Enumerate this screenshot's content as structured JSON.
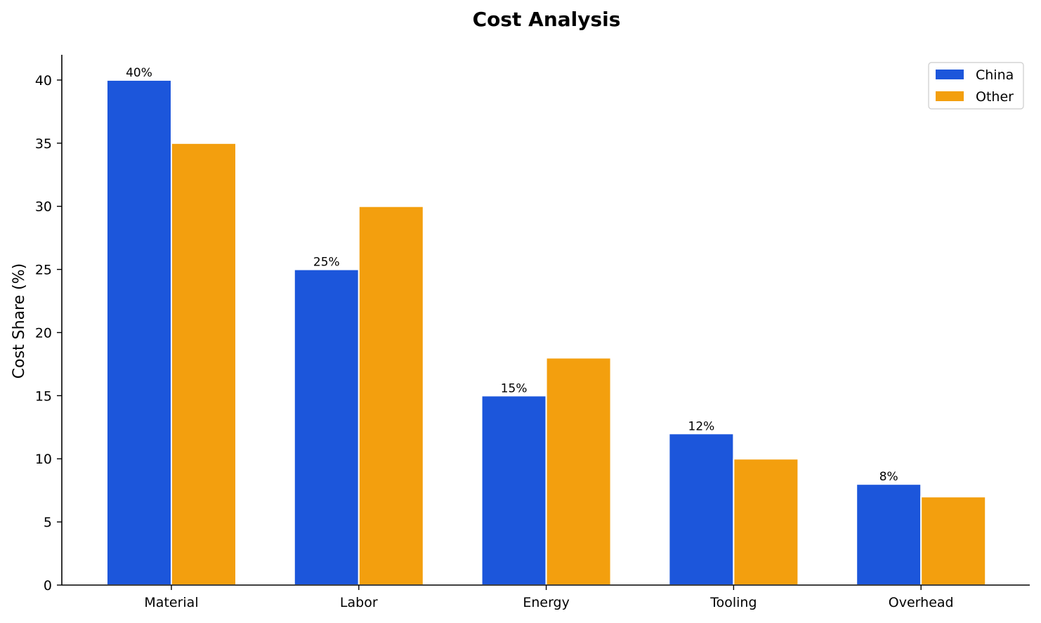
{
  "chart_data": {
    "type": "bar",
    "title": "Cost Analysis",
    "xlabel": "",
    "ylabel": "Cost Share (%)",
    "categories": [
      "Material",
      "Labor",
      "Energy",
      "Tooling",
      "Overhead"
    ],
    "series": [
      {
        "name": "China",
        "values": [
          40,
          25,
          15,
          12,
          8
        ],
        "color": "#1c56db",
        "data_labels": [
          "40%",
          "25%",
          "15%",
          "12%",
          "8%"
        ]
      },
      {
        "name": "Other",
        "values": [
          35,
          30,
          18,
          10,
          7
        ],
        "color": "#f39f0e"
      }
    ],
    "ylim": [
      0,
      42
    ],
    "yticks": [
      0,
      5,
      10,
      15,
      20,
      25,
      30,
      35,
      40
    ],
    "grid": false,
    "legend": "top-right"
  }
}
